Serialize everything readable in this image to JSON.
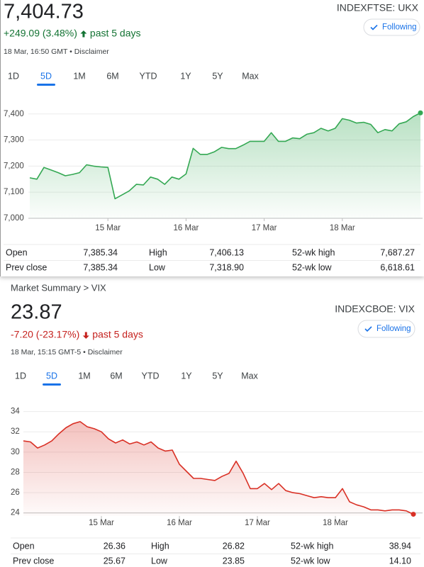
{
  "breadcrumb": "Market Summary > VIX",
  "panels": [
    {
      "price": "7,404.73",
      "change": "+249.09 (3.48%)",
      "period": "past 5 days",
      "direction": "up",
      "timestamp": "18 Mar, 16:50 GMT • Disclaimer",
      "ticker": "INDEXFTSE: UKX",
      "follow": "Following",
      "tabs": [
        "1D",
        "5D",
        "1M",
        "6M",
        "YTD",
        "1Y",
        "5Y",
        "Max"
      ],
      "active_tab": 1,
      "stats": [
        [
          "Open",
          "7,385.34",
          "High",
          "7,406.13",
          "52-wk high",
          "7,687.27"
        ],
        [
          "Prev close",
          "7,385.34",
          "Low",
          "7,318.90",
          "52-wk low",
          "6,618.61"
        ]
      ]
    },
    {
      "price": "23.87",
      "change": "-7.20 (-23.17%)",
      "period": "past 5 days",
      "direction": "down",
      "timestamp": "18 Mar, 15:15 GMT-5 • Disclaimer",
      "ticker": "INDEXCBOE: VIX",
      "follow": "Following",
      "tabs": [
        "1D",
        "5D",
        "1M",
        "6M",
        "YTD",
        "1Y",
        "5Y",
        "Max"
      ],
      "active_tab": 1,
      "stats": [
        [
          "Open",
          "26.36",
          "High",
          "26.82",
          "52-wk high",
          "38.94"
        ],
        [
          "Prev close",
          "25.67",
          "Low",
          "23.85",
          "52-wk low",
          "14.10"
        ]
      ]
    }
  ],
  "chart_data": [
    {
      "type": "line",
      "categories": [
        null,
        null,
        null,
        null,
        null,
        null,
        null,
        null,
        null,
        null,
        null,
        "15 Mar",
        null,
        null,
        null,
        null,
        null,
        null,
        null,
        null,
        null,
        null,
        "16 Mar",
        null,
        null,
        null,
        null,
        null,
        null,
        null,
        null,
        null,
        null,
        "17 Mar",
        null,
        null,
        null,
        null,
        null,
        null,
        null,
        null,
        null,
        null,
        "18 Mar",
        null,
        null,
        null,
        null,
        null,
        null,
        null,
        null,
        null,
        null,
        null
      ],
      "series": [
        {
          "color": "#34a853",
          "values": [
            7155,
            7150,
            7195,
            7185,
            7175,
            7163,
            7168,
            7175,
            7205,
            7200,
            7197,
            7195,
            7075,
            7090,
            7105,
            7130,
            7128,
            7158,
            7150,
            7130,
            7158,
            7150,
            7170,
            7268,
            7245,
            7245,
            7255,
            7272,
            7267,
            7267,
            7280,
            7295,
            7295,
            7295,
            7328,
            7295,
            7295,
            7308,
            7305,
            7322,
            7328,
            7345,
            7335,
            7345,
            7382,
            7376,
            7365,
            7368,
            7360,
            7328,
            7340,
            7335,
            7362,
            7370,
            7390,
            7404
          ]
        }
      ],
      "ylim": [
        7000,
        7440
      ],
      "yticks": [
        {
          "value": 7000,
          "label": "7,000"
        },
        {
          "value": 7100,
          "label": "7,100"
        },
        {
          "value": 7200,
          "label": "7,200"
        },
        {
          "value": 7300,
          "label": "7,300"
        },
        {
          "value": 7400,
          "label": "7,400"
        }
      ],
      "grid": true
    },
    {
      "type": "line",
      "categories": [
        null,
        null,
        null,
        null,
        null,
        null,
        null,
        null,
        null,
        null,
        null,
        "15 Mar",
        null,
        null,
        null,
        null,
        null,
        null,
        null,
        null,
        null,
        null,
        "16 Mar",
        null,
        null,
        null,
        null,
        null,
        null,
        null,
        null,
        null,
        null,
        "17 Mar",
        null,
        null,
        null,
        null,
        null,
        null,
        null,
        null,
        null,
        null,
        "18 Mar",
        null,
        null,
        null,
        null,
        null,
        null,
        null,
        null,
        null,
        null,
        null
      ],
      "series": [
        {
          "color": "#d93025",
          "values": [
            31.1,
            31.0,
            30.4,
            30.7,
            31.1,
            31.8,
            32.4,
            32.8,
            33.0,
            32.5,
            32.3,
            32.0,
            31.3,
            30.9,
            31.2,
            30.8,
            31.0,
            30.7,
            31.0,
            30.4,
            30.1,
            30.2,
            28.8,
            28.1,
            27.4,
            27.4,
            27.3,
            27.2,
            27.6,
            27.9,
            29.1,
            27.9,
            26.4,
            26.4,
            26.9,
            26.3,
            26.9,
            26.2,
            26.0,
            25.9,
            25.7,
            25.5,
            25.6,
            25.5,
            25.5,
            26.4,
            25.1,
            24.8,
            24.6,
            24.3,
            24.3,
            24.2,
            24.3,
            24.3,
            24.2,
            23.87
          ]
        }
      ],
      "ylim": [
        23.7,
        34.6
      ],
      "yticks": [
        24,
        26,
        28,
        30,
        32,
        34
      ],
      "grid": true
    }
  ]
}
